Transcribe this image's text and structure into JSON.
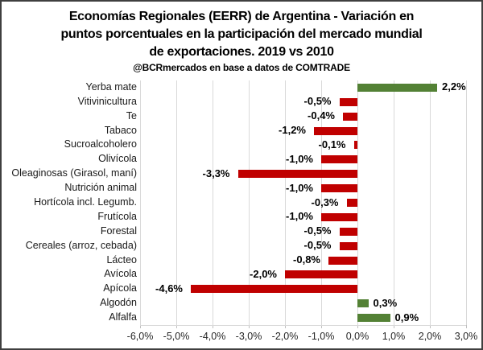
{
  "window": {
    "background_color": "#ffffff",
    "border_color": "#3f3f3f"
  },
  "title": {
    "line1": "Economías Regionales (EERR) de Argentina - Variación en",
    "line2": "puntos porcentuales en la participación  del mercado mundial",
    "line3": "de exportaciones. 2019 vs 2010",
    "credit": "@BCRmercados en base a datos de COMTRADE"
  },
  "chart_data": {
    "type": "bar",
    "orientation": "horizontal",
    "categories": [
      "Yerba mate",
      "Vitivinicultura",
      "Te",
      "Tabaco",
      "Sucroalcoholero",
      "Olivícola",
      "Oleaginosas (Girasol, maní)",
      "Nutrición animal",
      "Hortícola incl. Legumb.",
      "Frutícola",
      "Forestal",
      "Cereales (arroz, cebada)",
      "Lácteo",
      "Avícola",
      "Apícola",
      "Algodón",
      "Alfalfa"
    ],
    "values": [
      2.2,
      -0.5,
      -0.4,
      -1.2,
      -0.1,
      -1.0,
      -3.3,
      -1.0,
      -0.3,
      -1.0,
      -0.5,
      -0.5,
      -0.8,
      -2.0,
      -4.6,
      0.3,
      0.9
    ],
    "data_labels": [
      "2,2%",
      "-0,5%",
      "-0,4%",
      "-1,2%",
      "-0,1%",
      "-1,0%",
      "-3,3%",
      "-1,0%",
      "-0,3%",
      "-1,0%",
      "-0,5%",
      "-0,5%",
      "-0,8%",
      "-2,0%",
      "-4,6%",
      "0,3%",
      "0,9%"
    ],
    "xlim": [
      -6,
      3
    ],
    "x_ticks": [
      -6,
      -5,
      -4,
      -3,
      -2,
      -1,
      0,
      1,
      2,
      3
    ],
    "x_tick_labels": [
      "-6,0%",
      "-5,0%",
      "-4,0%",
      "-3,0%",
      "-2,0%",
      "-1,0%",
      "0,0%",
      "1,0%",
      "2,0%",
      "3,0%"
    ],
    "positive_color": "#538135",
    "negative_color": "#c00000",
    "gridline_color": "#d9d9d9",
    "grid": true,
    "legend": false,
    "xlabel": "",
    "ylabel": ""
  }
}
